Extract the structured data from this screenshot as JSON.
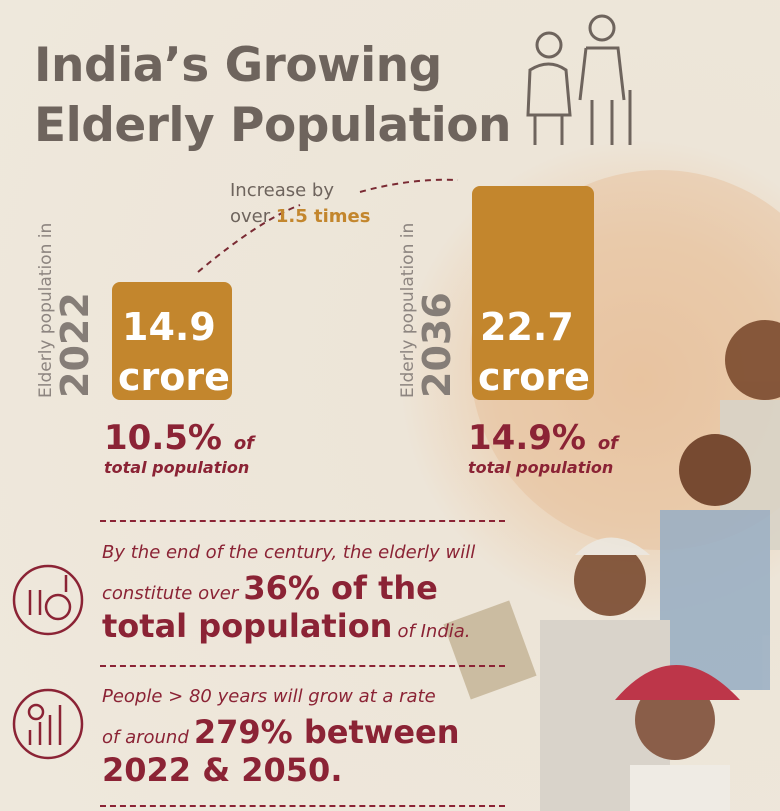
{
  "title_lines": [
    "India’s Growing",
    "Elderly Population"
  ],
  "annotation": {
    "line1": "Increase by",
    "line2": "over",
    "highlight": "1.5 times"
  },
  "stats": [
    {
      "label": "Elderly population in",
      "year": "2022",
      "value": 14.9,
      "unit": "crore",
      "share": "10.5%",
      "share_suffix": "of",
      "share_note": "total population"
    },
    {
      "label": "Elderly population in",
      "year": "2036",
      "value": 22.7,
      "unit": "crore",
      "share": "14.9%",
      "share_suffix": "of",
      "share_note": "total population"
    }
  ],
  "facts": [
    {
      "line1": "By the end of the century, the elderly will",
      "line2_lead": "constitute over",
      "line2_bold": "36% of the",
      "line3_bold": "total population",
      "line3_tail": "of India."
    },
    {
      "line1": "People > 80 years will grow at a rate",
      "line2_lead": "of around",
      "line2_bold": "279% between",
      "line3_bold": "2022 & 2050."
    }
  ]
}
